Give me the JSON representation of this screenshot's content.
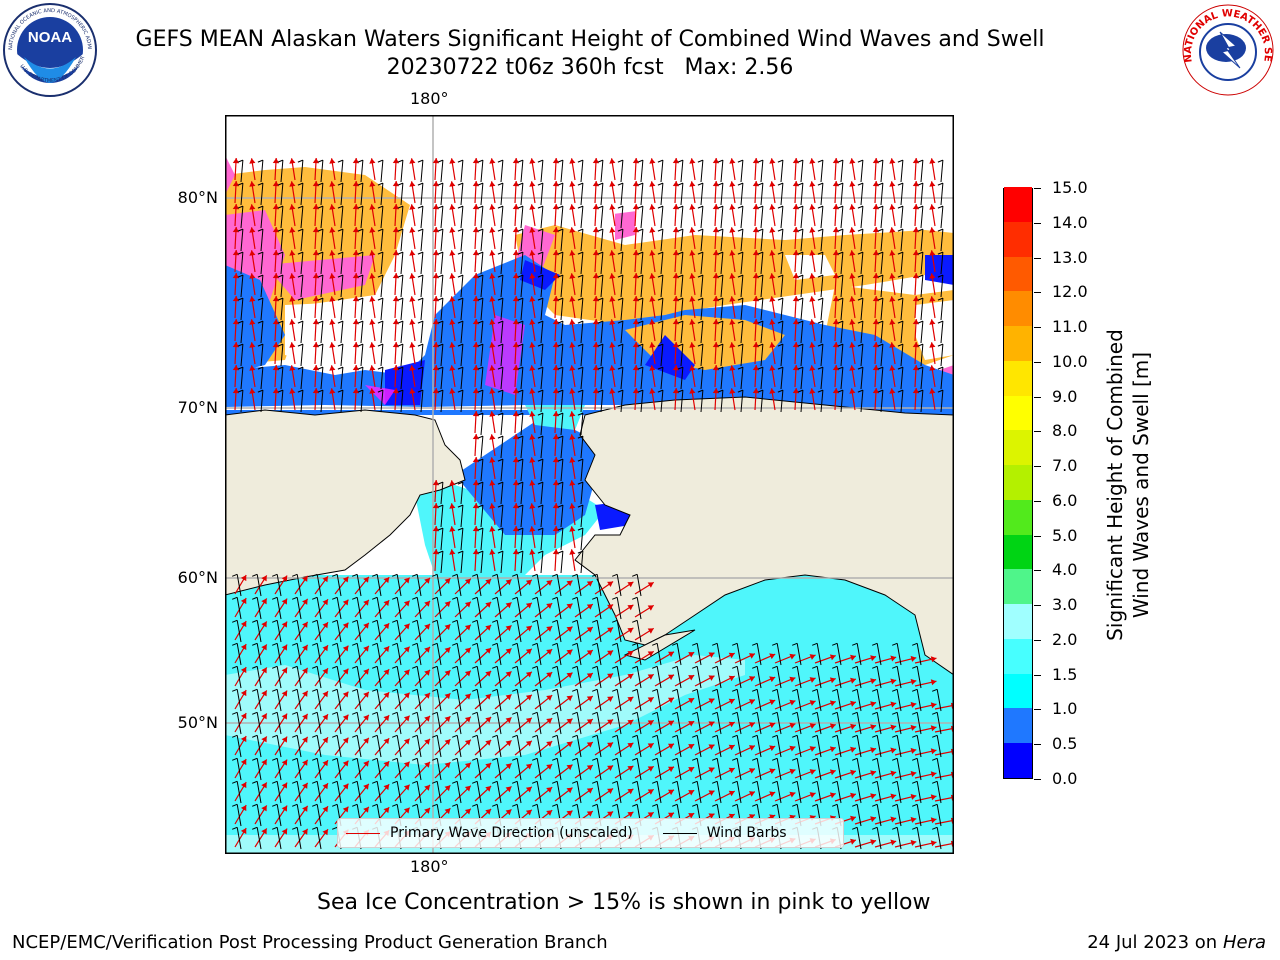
{
  "header": {
    "title_line1": "GEFS MEAN Alaskan Waters Significant Height of Combined Wind Waves and Swell",
    "title_line2": "20230722 t06z 360h fcst   Max: 2.56"
  },
  "logos": {
    "noaa_text": "NOAA",
    "noaa_ring_top": "NATIONAL OCEANIC AND ATMOSPHERIC ADMINISTRATION",
    "noaa_ring_bottom": "U.S. DEPARTMENT OF COMMERCE",
    "nws_ring": "NATIONAL WEATHER SERVICE"
  },
  "map": {
    "lon_labels": [
      "180°",
      "180°"
    ],
    "lat_labels": [
      "80°N",
      "70°N",
      "60°N",
      "50°N"
    ],
    "colors": {
      "land": "#efecdc",
      "ocean_cyan": "#4ff6fb",
      "ocean_light": "#a0fbfb",
      "ocean_blue": "#1f78ff",
      "ocean_darkblue": "#0a1aff",
      "ice_orange": "#ffbd3d",
      "ice_pink": "#ff68d2",
      "ice_magenta": "#ff20ff",
      "grid": "#b0b0b0",
      "wave_arrow": "#e00000",
      "wind_barb": "#000000"
    }
  },
  "legend": {
    "wave_label": "Primary Wave Direction (unscaled)",
    "wind_label": "Wind Barbs"
  },
  "colorbar": {
    "title_line1": "Significant Height of Combined",
    "title_line2": "Wind Waves and Swell [m]",
    "tick_labels": [
      "0.0",
      "0.5",
      "1.0",
      "1.5",
      "2.0",
      "3.0",
      "4.0",
      "5.0",
      "6.0",
      "7.0",
      "8.0",
      "9.0",
      "10.0",
      "11.0",
      "12.0",
      "13.0",
      "14.0",
      "15.0"
    ],
    "colors": [
      "#0000ff",
      "#1f78ff",
      "#00ffff",
      "#47ffff",
      "#a0ffff",
      "#4ff58a",
      "#00d414",
      "#52ea1c",
      "#b4f000",
      "#dcf400",
      "#ffff00",
      "#ffe600",
      "#ffb300",
      "#ff8c00",
      "#ff5a00",
      "#ff2d00",
      "#ff0000"
    ]
  },
  "footer": {
    "note": "Sea Ice Concentration > 15% is shown in pink to yellow",
    "left": "NCEP/EMC/Verification Post Processing Product Generation Branch",
    "right_prefix": "24 Jul 2023 on ",
    "right_italic": "Hera"
  }
}
